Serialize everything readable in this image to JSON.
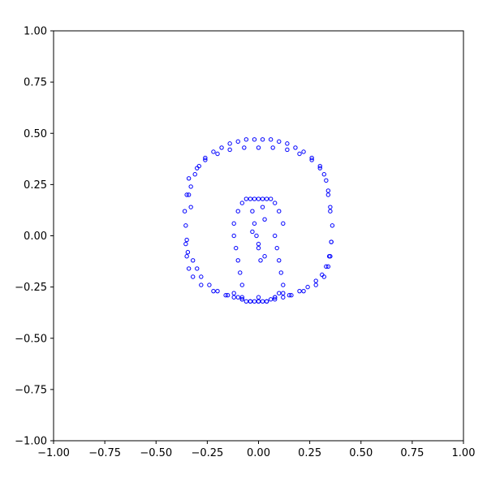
{
  "chart_data": {
    "type": "scatter",
    "title": "",
    "xlabel": "",
    "ylabel": "",
    "xlim": [
      -1.0,
      1.0
    ],
    "ylim": [
      -1.0,
      1.0
    ],
    "grid": false,
    "xticks": [
      -1.0,
      -0.75,
      -0.5,
      -0.25,
      0.0,
      0.25,
      0.5,
      0.75,
      1.0
    ],
    "yticks": [
      -1.0,
      -0.75,
      -0.5,
      -0.25,
      0.0,
      0.25,
      0.5,
      0.75,
      1.0
    ],
    "xtick_labels": [
      "−1.00",
      "−0.75",
      "−0.50",
      "−0.25",
      "0.00",
      "0.25",
      "0.50",
      "0.75",
      "1.00"
    ],
    "ytick_labels": [
      "−1.00",
      "−0.75",
      "−0.50",
      "−0.25",
      "0.00",
      "0.25",
      "0.50",
      "0.75",
      "1.00"
    ],
    "marker": "hollow-circle",
    "marker_color": "#0000ff",
    "series": [
      {
        "x": [
          -0.36,
          -0.355,
          -0.35,
          -0.345,
          -0.34,
          -0.33,
          -0.32,
          -0.31,
          -0.3,
          -0.29,
          -0.28,
          -0.26,
          -0.24,
          -0.22,
          -0.2,
          -0.18,
          -0.16,
          -0.14,
          -0.12,
          -0.1,
          -0.08,
          -0.06,
          -0.04,
          -0.02,
          0.0,
          0.02,
          0.04,
          0.06,
          0.08,
          0.1,
          0.12,
          0.14,
          0.16,
          0.18,
          0.2,
          0.22,
          0.24,
          0.26,
          0.28,
          0.3,
          0.31,
          0.32,
          0.33,
          0.34,
          0.345,
          0.35,
          0.355,
          0.36,
          -0.35,
          -0.34,
          -0.33,
          -0.3,
          -0.26,
          -0.2,
          -0.14,
          -0.07,
          0.0,
          0.07,
          0.14,
          0.2,
          0.26,
          0.3,
          0.33,
          0.34,
          0.35,
          -0.355,
          -0.35,
          -0.34,
          -0.32,
          -0.28,
          -0.22,
          -0.15,
          -0.08,
          0.0,
          0.08,
          0.15,
          0.22,
          0.28,
          0.32,
          0.34,
          0.35,
          0.355,
          -0.12,
          -0.1,
          -0.08,
          -0.06,
          -0.04,
          -0.02,
          0.0,
          0.02,
          0.04,
          0.06,
          0.08,
          0.1,
          0.12,
          -0.12,
          -0.11,
          -0.1,
          -0.09,
          -0.08,
          0.08,
          0.09,
          0.1,
          0.11,
          0.12,
          -0.12,
          -0.1,
          -0.08,
          -0.06,
          -0.04,
          -0.02,
          0.0,
          0.02,
          0.04,
          0.06,
          0.08,
          0.1,
          0.12,
          -0.03,
          -0.02,
          -0.01,
          0.0,
          0.01,
          0.02,
          0.03,
          -0.03,
          0.0,
          0.03
        ],
        "y": [
          0.12,
          0.05,
          -0.02,
          -0.08,
          0.2,
          0.24,
          -0.12,
          0.3,
          -0.16,
          0.34,
          -0.2,
          0.38,
          -0.24,
          0.41,
          -0.27,
          0.43,
          -0.29,
          0.45,
          -0.3,
          0.46,
          -0.31,
          0.47,
          -0.32,
          0.47,
          -0.32,
          0.47,
          -0.32,
          0.47,
          -0.31,
          0.46,
          -0.3,
          0.45,
          -0.29,
          0.43,
          -0.27,
          0.41,
          -0.25,
          0.38,
          -0.22,
          0.34,
          -0.19,
          0.3,
          -0.15,
          0.22,
          -0.1,
          0.14,
          -0.03,
          0.05,
          0.2,
          0.28,
          0.14,
          0.33,
          0.37,
          0.4,
          0.42,
          0.43,
          0.43,
          0.43,
          0.42,
          0.4,
          0.37,
          0.33,
          0.27,
          0.2,
          0.12,
          -0.04,
          -0.1,
          -0.16,
          -0.2,
          -0.24,
          -0.27,
          -0.29,
          -0.3,
          -0.3,
          -0.3,
          -0.29,
          -0.27,
          -0.24,
          -0.2,
          -0.15,
          -0.1,
          -0.03,
          0.06,
          0.12,
          0.16,
          0.18,
          0.18,
          0.18,
          0.18,
          0.18,
          0.18,
          0.18,
          0.16,
          0.12,
          0.06,
          0.0,
          -0.06,
          -0.12,
          -0.18,
          -0.24,
          0.0,
          -0.06,
          -0.12,
          -0.18,
          -0.24,
          -0.28,
          -0.3,
          -0.31,
          -0.32,
          -0.32,
          -0.32,
          -0.32,
          -0.32,
          -0.32,
          -0.31,
          -0.3,
          -0.28,
          -0.28,
          0.12,
          0.06,
          0.0,
          -0.06,
          -0.12,
          0.14,
          0.08,
          0.02,
          -0.04,
          -0.1
        ]
      }
    ]
  }
}
